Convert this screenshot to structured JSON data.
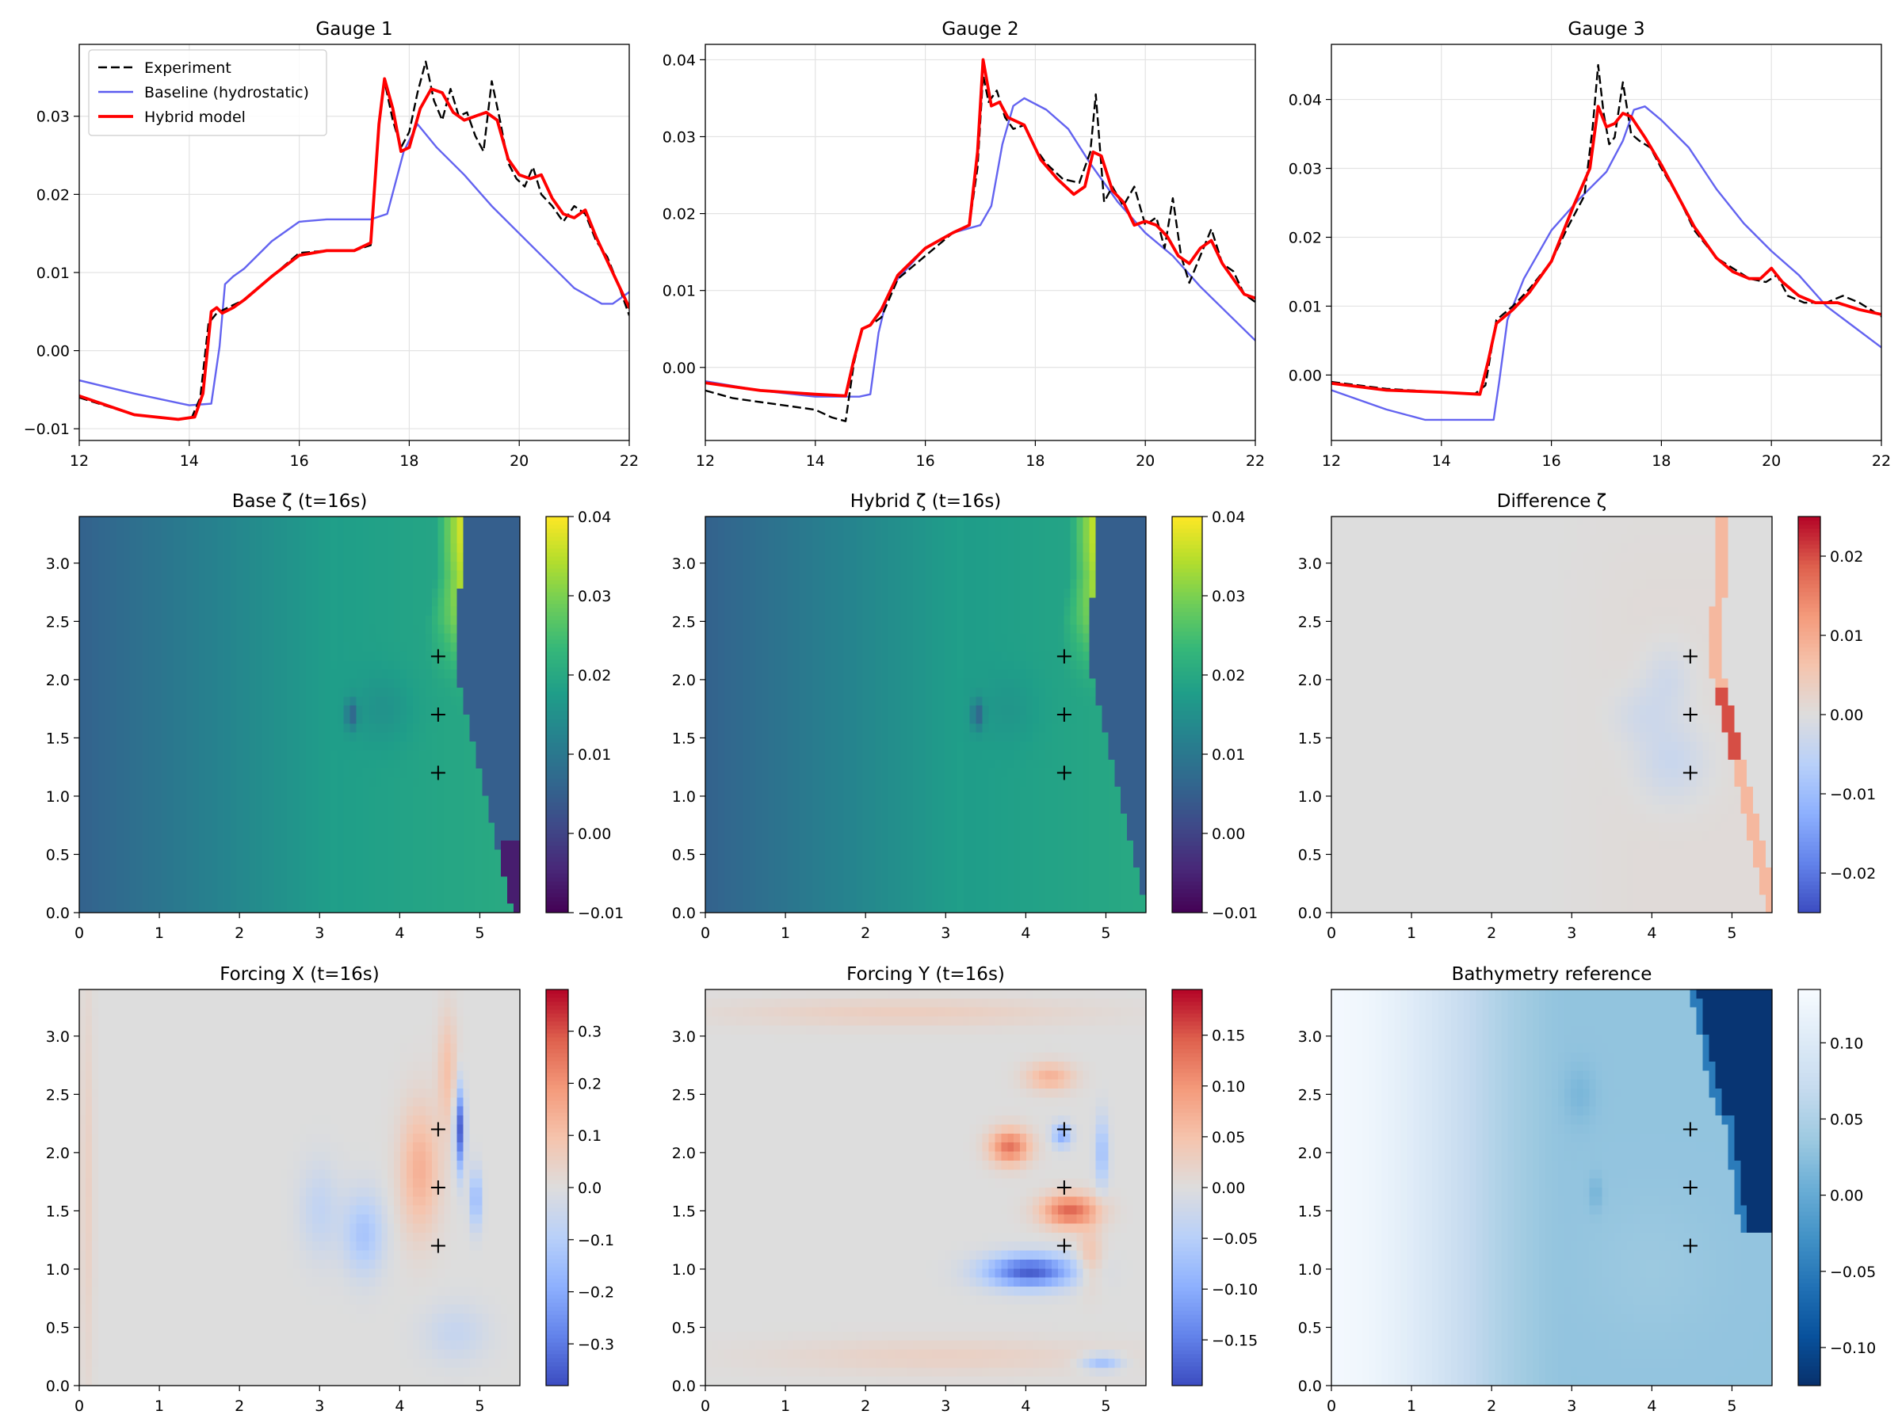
{
  "chart_data": [
    {
      "type": "line",
      "title": "Gauge 1",
      "xlim": [
        12,
        22
      ],
      "ylim": [
        -0.0115,
        0.0392
      ],
      "xticks": [
        "12",
        "14",
        "16",
        "18",
        "20",
        "22"
      ],
      "yticks": [
        "-0.01",
        "0.00",
        "0.01",
        "0.02",
        "0.03"
      ],
      "legend": {
        "position": "top-left",
        "entries": [
          "Experiment",
          "Baseline (hydrostatic)",
          "Hybrid model"
        ]
      },
      "series": [
        {
          "name": "Experiment",
          "color": "#000000",
          "dash": "dashed",
          "x": [
            12,
            13,
            13.8,
            14.05,
            14.2,
            14.35,
            14.5,
            14.7,
            15,
            15.5,
            16,
            16.5,
            17,
            17.3,
            17.45,
            17.55,
            17.7,
            17.85,
            18.0,
            18.15,
            18.3,
            18.45,
            18.6,
            18.75,
            18.9,
            19.05,
            19.2,
            19.35,
            19.5,
            19.65,
            19.8,
            19.95,
            20.1,
            20.25,
            20.4,
            20.6,
            20.8,
            21.0,
            21.2,
            21.4,
            21.6,
            21.8,
            22
          ],
          "y": [
            -0.006,
            -0.0082,
            -0.0088,
            -0.0085,
            -0.006,
            0.0035,
            0.0048,
            0.0055,
            0.0065,
            0.0095,
            0.0125,
            0.0128,
            0.0128,
            0.0135,
            0.029,
            0.0345,
            0.0295,
            0.026,
            0.028,
            0.033,
            0.037,
            0.032,
            0.0295,
            0.0335,
            0.03,
            0.0305,
            0.0275,
            0.0255,
            0.0345,
            0.0295,
            0.024,
            0.022,
            0.021,
            0.0235,
            0.02,
            0.0185,
            0.0165,
            0.0185,
            0.0175,
            0.014,
            0.012,
            0.0085,
            0.0045
          ]
        },
        {
          "name": "Baseline (hydrostatic)",
          "color": "#5b5bef",
          "dash": "solid",
          "x": [
            12,
            13,
            14,
            14.4,
            14.55,
            14.65,
            14.8,
            15,
            15.5,
            16,
            16.5,
            17,
            17.3,
            17.6,
            17.9,
            18.15,
            18.5,
            19,
            19.5,
            20,
            20.5,
            21,
            21.5,
            21.7,
            22
          ],
          "y": [
            -0.0038,
            -0.0055,
            -0.007,
            -0.0068,
            0.0005,
            0.0085,
            0.0095,
            0.0105,
            0.014,
            0.0165,
            0.0168,
            0.0168,
            0.0168,
            0.0175,
            0.0255,
            0.029,
            0.026,
            0.0225,
            0.0185,
            0.015,
            0.0115,
            0.008,
            0.006,
            0.006,
            0.0075
          ]
        },
        {
          "name": "Hybrid model",
          "color": "#ff0000",
          "dash": "solid",
          "x": [
            12,
            13,
            13.8,
            14.1,
            14.25,
            14.4,
            14.5,
            14.6,
            14.8,
            15,
            15.5,
            16,
            16.5,
            17,
            17.3,
            17.45,
            17.55,
            17.7,
            17.85,
            18.0,
            18.2,
            18.4,
            18.6,
            18.8,
            19.0,
            19.2,
            19.4,
            19.6,
            19.8,
            20.0,
            20.2,
            20.4,
            20.6,
            20.8,
            21.0,
            21.2,
            21.4,
            21.6,
            21.8,
            22
          ],
          "y": [
            -0.0058,
            -0.0082,
            -0.0088,
            -0.0085,
            -0.0055,
            0.005,
            0.0055,
            0.0048,
            0.0055,
            0.0065,
            0.0095,
            0.0122,
            0.0128,
            0.0128,
            0.0138,
            0.029,
            0.0348,
            0.031,
            0.0255,
            0.026,
            0.031,
            0.0335,
            0.033,
            0.0305,
            0.0295,
            0.03,
            0.0305,
            0.0295,
            0.0245,
            0.0225,
            0.022,
            0.0225,
            0.0195,
            0.0175,
            0.017,
            0.018,
            0.0145,
            0.0115,
            0.0085,
            0.0055
          ]
        }
      ]
    },
    {
      "type": "line",
      "title": "Gauge 2",
      "xlim": [
        12,
        22
      ],
      "ylim": [
        -0.0095,
        0.042
      ],
      "xticks": [
        "12",
        "14",
        "16",
        "18",
        "20",
        "22"
      ],
      "yticks": [
        "0.00",
        "0.01",
        "0.02",
        "0.03",
        "0.04"
      ],
      "series": [
        {
          "name": "Experiment",
          "color": "#000000",
          "dash": "dashed",
          "x": [
            12,
            12.5,
            13,
            13.5,
            14,
            14.3,
            14.55,
            14.7,
            14.85,
            15.0,
            15.2,
            15.5,
            16,
            16.5,
            16.8,
            16.95,
            17.05,
            17.15,
            17.3,
            17.45,
            17.6,
            17.8,
            18.0,
            18.2,
            18.5,
            18.8,
            19.0,
            19.1,
            19.25,
            19.4,
            19.6,
            19.8,
            20.0,
            20.2,
            20.35,
            20.5,
            20.65,
            20.8,
            21.0,
            21.2,
            21.4,
            21.6,
            21.8,
            22
          ],
          "y": [
            -0.003,
            -0.004,
            -0.0045,
            -0.005,
            -0.0055,
            -0.0065,
            -0.007,
            0.0005,
            0.005,
            0.0055,
            0.0065,
            0.0115,
            0.0145,
            0.0175,
            0.0185,
            0.026,
            0.038,
            0.0345,
            0.036,
            0.0325,
            0.031,
            0.0315,
            0.0285,
            0.0265,
            0.0245,
            0.024,
            0.028,
            0.0355,
            0.0215,
            0.0235,
            0.021,
            0.0235,
            0.0185,
            0.0195,
            0.0155,
            0.022,
            0.0145,
            0.011,
            0.0145,
            0.018,
            0.0135,
            0.0125,
            0.0095,
            0.0085
          ]
        },
        {
          "name": "Baseline (hydrostatic)",
          "color": "#5b5bef",
          "dash": "solid",
          "x": [
            12,
            13,
            14,
            14.8,
            15.0,
            15.15,
            15.3,
            15.5,
            16,
            16.5,
            17,
            17.2,
            17.4,
            17.6,
            17.8,
            18.2,
            18.6,
            19,
            19.5,
            20,
            20.5,
            21,
            21.5,
            22
          ],
          "y": [
            -0.0018,
            -0.003,
            -0.0038,
            -0.0038,
            -0.0035,
            0.0045,
            0.009,
            0.0115,
            0.0155,
            0.0175,
            0.0185,
            0.021,
            0.029,
            0.034,
            0.035,
            0.0335,
            0.031,
            0.0265,
            0.0215,
            0.0175,
            0.0145,
            0.0105,
            0.007,
            0.0035
          ]
        },
        {
          "name": "Hybrid model",
          "color": "#ff0000",
          "dash": "solid",
          "x": [
            12,
            13,
            14,
            14.55,
            14.7,
            14.85,
            15.0,
            15.2,
            15.5,
            16,
            16.5,
            16.8,
            16.95,
            17.05,
            17.2,
            17.35,
            17.5,
            17.8,
            18.1,
            18.4,
            18.7,
            18.9,
            19.05,
            19.2,
            19.4,
            19.6,
            19.8,
            20.0,
            20.2,
            20.4,
            20.6,
            20.8,
            21.0,
            21.2,
            21.4,
            21.6,
            21.8,
            22
          ],
          "y": [
            -0.002,
            -0.003,
            -0.0035,
            -0.0037,
            0.001,
            0.005,
            0.0055,
            0.0075,
            0.012,
            0.0155,
            0.0175,
            0.0185,
            0.028,
            0.04,
            0.034,
            0.0345,
            0.0325,
            0.0315,
            0.027,
            0.0245,
            0.0225,
            0.0235,
            0.028,
            0.0275,
            0.023,
            0.0215,
            0.0185,
            0.019,
            0.0185,
            0.017,
            0.0145,
            0.0135,
            0.0155,
            0.0165,
            0.0135,
            0.0115,
            0.0095,
            0.009
          ]
        }
      ]
    },
    {
      "type": "line",
      "title": "Gauge 3",
      "xlim": [
        12,
        22
      ],
      "ylim": [
        -0.0095,
        0.048
      ],
      "xticks": [
        "12",
        "14",
        "16",
        "18",
        "20",
        "22"
      ],
      "yticks": [
        "0.00",
        "0.01",
        "0.02",
        "0.03",
        "0.04"
      ],
      "series": [
        {
          "name": "Experiment",
          "color": "#000000",
          "dash": "dashed",
          "x": [
            12,
            13,
            14,
            14.6,
            14.8,
            15.0,
            15.3,
            15.6,
            16,
            16.3,
            16.6,
            16.75,
            16.85,
            16.95,
            17.05,
            17.15,
            17.3,
            17.45,
            17.6,
            17.8,
            18.0,
            18.3,
            18.6,
            19.0,
            19.3,
            19.6,
            19.9,
            20.1,
            20.3,
            20.6,
            21.0,
            21.3,
            21.6,
            22
          ],
          "y": [
            -0.001,
            -0.002,
            -0.0025,
            -0.0028,
            -0.0015,
            0.008,
            0.01,
            0.0125,
            0.0165,
            0.0215,
            0.026,
            0.036,
            0.045,
            0.038,
            0.0335,
            0.0345,
            0.0425,
            0.035,
            0.034,
            0.033,
            0.03,
            0.026,
            0.021,
            0.017,
            0.0155,
            0.014,
            0.0135,
            0.0145,
            0.0115,
            0.0105,
            0.0105,
            0.0115,
            0.0105,
            0.0085
          ]
        },
        {
          "name": "Baseline (hydrostatic)",
          "color": "#5b5bef",
          "dash": "solid",
          "x": [
            12,
            13,
            13.7,
            14,
            14.6,
            14.95,
            15.05,
            15.2,
            15.5,
            16,
            16.5,
            17,
            17.3,
            17.5,
            17.7,
            18.0,
            18.5,
            19.0,
            19.5,
            20.0,
            20.5,
            21,
            21.5,
            22
          ],
          "y": [
            -0.0022,
            -0.005,
            -0.0065,
            -0.0065,
            -0.0065,
            -0.0065,
            -0.001,
            0.008,
            0.014,
            0.021,
            0.0255,
            0.0295,
            0.034,
            0.0385,
            0.039,
            0.037,
            0.033,
            0.027,
            0.022,
            0.018,
            0.0145,
            0.01,
            0.007,
            0.004
          ]
        },
        {
          "name": "Hybrid model",
          "color": "#ff0000",
          "dash": "solid",
          "x": [
            12,
            13,
            14,
            14.7,
            14.85,
            15.0,
            15.3,
            15.6,
            16,
            16.4,
            16.7,
            16.85,
            17.0,
            17.15,
            17.3,
            17.45,
            17.7,
            18.0,
            18.3,
            18.6,
            19.0,
            19.3,
            19.6,
            19.8,
            20.0,
            20.2,
            20.5,
            20.8,
            21.2,
            21.6,
            22
          ],
          "y": [
            -0.0012,
            -0.0022,
            -0.0025,
            -0.0028,
            0.002,
            0.0075,
            0.0095,
            0.012,
            0.0165,
            0.0245,
            0.03,
            0.039,
            0.036,
            0.0365,
            0.038,
            0.0375,
            0.0345,
            0.0305,
            0.026,
            0.0215,
            0.017,
            0.015,
            0.014,
            0.014,
            0.0155,
            0.0135,
            0.0115,
            0.0105,
            0.0105,
            0.0095,
            0.0088
          ]
        }
      ]
    },
    {
      "type": "heatmap",
      "title": "Base ζ (t=16s)",
      "field": "base",
      "colormap": "viridis",
      "xlim": [
        0,
        5.5
      ],
      "ylim": [
        0,
        3.4
      ],
      "clim": [
        -0.01,
        0.04
      ],
      "xticks": [
        "0",
        "1",
        "2",
        "3",
        "4",
        "5"
      ],
      "yticks": [
        "0.0",
        "0.5",
        "1.0",
        "1.5",
        "2.0",
        "2.5",
        "3.0"
      ],
      "cbar_ticks": [
        "−0.01",
        "0.00",
        "0.01",
        "0.02",
        "0.03",
        "0.04"
      ],
      "gauges": [
        [
          4.48,
          2.2
        ],
        [
          4.48,
          1.7
        ],
        [
          4.48,
          1.2
        ]
      ]
    },
    {
      "type": "heatmap",
      "title": "Hybrid ζ (t=16s)",
      "field": "hybrid",
      "colormap": "viridis",
      "xlim": [
        0,
        5.5
      ],
      "ylim": [
        0,
        3.4
      ],
      "clim": [
        -0.01,
        0.04
      ],
      "xticks": [
        "0",
        "1",
        "2",
        "3",
        "4",
        "5"
      ],
      "yticks": [
        "0.0",
        "0.5",
        "1.0",
        "1.5",
        "2.0",
        "2.5",
        "3.0"
      ],
      "cbar_ticks": [
        "−0.01",
        "0.00",
        "0.01",
        "0.02",
        "0.03",
        "0.04"
      ],
      "gauges": [
        [
          4.48,
          2.2
        ],
        [
          4.48,
          1.7
        ],
        [
          4.48,
          1.2
        ]
      ]
    },
    {
      "type": "heatmap",
      "title": "Difference ζ",
      "field": "diff",
      "colormap": "coolwarm",
      "xlim": [
        0,
        5.5
      ],
      "ylim": [
        0,
        3.4
      ],
      "clim": [
        -0.025,
        0.025
      ],
      "xticks": [
        "0",
        "1",
        "2",
        "3",
        "4",
        "5"
      ],
      "yticks": [
        "0.0",
        "0.5",
        "1.0",
        "1.5",
        "2.0",
        "2.5",
        "3.0"
      ],
      "cbar_ticks": [
        "−0.02",
        "−0.01",
        "0.00",
        "0.01",
        "0.02"
      ],
      "gauges": [
        [
          4.48,
          2.2
        ],
        [
          4.48,
          1.7
        ],
        [
          4.48,
          1.2
        ]
      ]
    },
    {
      "type": "heatmap",
      "title": "Forcing X (t=16s)",
      "field": "fx",
      "colormap": "coolwarm",
      "xlim": [
        0,
        5.5
      ],
      "ylim": [
        0,
        3.4
      ],
      "clim": [
        -0.38,
        0.38
      ],
      "xticks": [
        "0",
        "1",
        "2",
        "3",
        "4",
        "5"
      ],
      "yticks": [
        "0.0",
        "0.5",
        "1.0",
        "1.5",
        "2.0",
        "2.5",
        "3.0"
      ],
      "cbar_ticks": [
        "−0.3",
        "−0.2",
        "−0.1",
        "0.0",
        "0.1",
        "0.2",
        "0.3"
      ],
      "gauges": [
        [
          4.48,
          2.2
        ],
        [
          4.48,
          1.7
        ],
        [
          4.48,
          1.2
        ]
      ]
    },
    {
      "type": "heatmap",
      "title": "Forcing Y (t=16s)",
      "field": "fy",
      "colormap": "coolwarm",
      "xlim": [
        0,
        5.5
      ],
      "ylim": [
        0,
        3.4
      ],
      "clim": [
        -0.195,
        0.195
      ],
      "xticks": [
        "0",
        "1",
        "2",
        "3",
        "4",
        "5"
      ],
      "yticks": [
        "0.0",
        "0.5",
        "1.0",
        "1.5",
        "2.0",
        "2.5",
        "3.0"
      ],
      "cbar_ticks": [
        "−0.15",
        "−0.10",
        "−0.05",
        "0.00",
        "0.05",
        "0.10",
        "0.15"
      ],
      "gauges": [
        [
          4.48,
          2.2
        ],
        [
          4.48,
          1.7
        ],
        [
          4.48,
          1.2
        ]
      ]
    },
    {
      "type": "heatmap",
      "title": "Bathymetry reference",
      "field": "bathy",
      "colormap": "blues_r",
      "xlim": [
        0,
        5.5
      ],
      "ylim": [
        0,
        3.4
      ],
      "clim": [
        -0.125,
        0.135
      ],
      "xticks": [
        "0",
        "1",
        "2",
        "3",
        "4",
        "5"
      ],
      "yticks": [
        "0.0",
        "0.5",
        "1.0",
        "1.5",
        "2.0",
        "2.5",
        "3.0"
      ],
      "cbar_ticks": [
        "−0.10",
        "−0.05",
        "0.00",
        "0.05",
        "0.10"
      ],
      "gauges": [
        [
          4.48,
          2.2
        ],
        [
          4.48,
          1.7
        ],
        [
          4.48,
          1.2
        ]
      ]
    }
  ]
}
